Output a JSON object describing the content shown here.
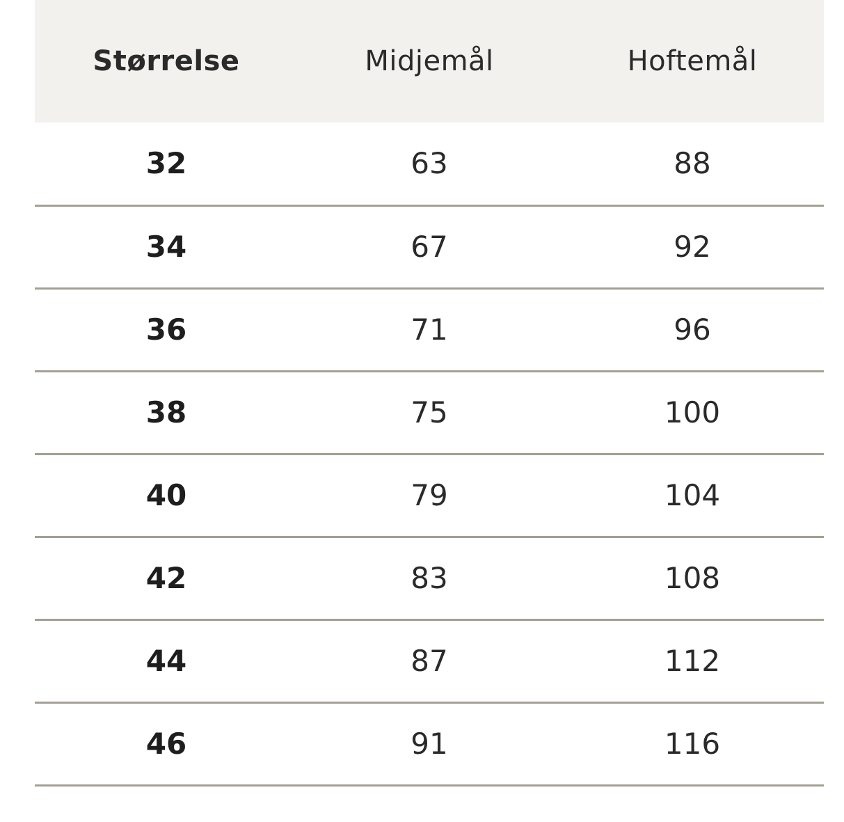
{
  "table": {
    "header": [
      "Størrelse",
      "Midjemål",
      "Hoftemål"
    ],
    "rows": [
      [
        32,
        63,
        88
      ],
      [
        34,
        67,
        92
      ],
      [
        36,
        71,
        96
      ],
      [
        38,
        75,
        100
      ],
      [
        40,
        79,
        104
      ],
      [
        42,
        83,
        108
      ],
      [
        44,
        87,
        112
      ],
      [
        46,
        91,
        116
      ]
    ]
  }
}
